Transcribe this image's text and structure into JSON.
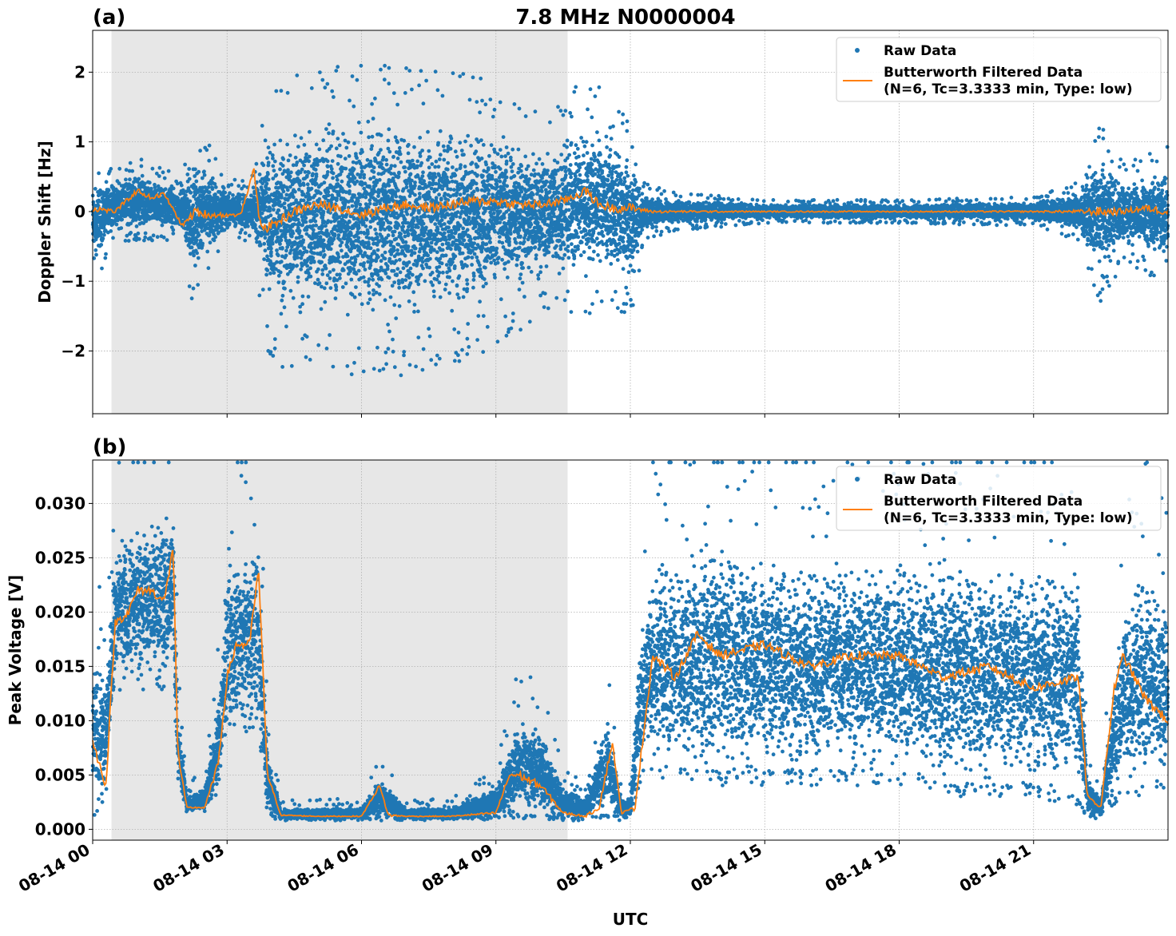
{
  "figure": {
    "title": "7.8 MHz N0000004",
    "xlabel": "UTC"
  },
  "colors": {
    "raw": "#1f77b4",
    "filtered": "#ff7f0e",
    "shade": "#e7e7e7",
    "grid": "#b0b0b0"
  },
  "chart_data": [
    {
      "type": "scatter",
      "panel_label": "(a)",
      "ylabel": "Doppler Shift [Hz]",
      "x_unit": "hours UTC on 08-14",
      "xlim": [
        0,
        24
      ],
      "ylim": [
        -2.9,
        2.6
      ],
      "yticks": [
        -2,
        -1,
        0,
        1,
        2
      ],
      "ytick_labels": [
        "−2",
        "−1",
        "0",
        "1",
        "2"
      ],
      "xticks": [
        0,
        3,
        6,
        9,
        12,
        15,
        18,
        21
      ],
      "grid": true,
      "shaded_interval": [
        0.42,
        10.6
      ],
      "legend": {
        "placement": "upper right",
        "entries": [
          "Raw Data",
          "Butterworth Filtered Data",
          "(N=6, Tc=3.3333 min, Type: low)"
        ]
      },
      "series": [
        {
          "name": "Raw Data",
          "kind": "points",
          "envelope": {
            "x": [
              0,
              0.4,
              1,
              2,
              2.25,
              2.5,
              3,
              3.5,
              3.65,
              3.85,
              4,
              5,
              6,
              7,
              8,
              9,
              10,
              10.6,
              11,
              11.5,
              12,
              12.3,
              13,
              15,
              18,
              21,
              22,
              22.5,
              23,
              24
            ],
            "upper": [
              0.5,
              0.45,
              0.6,
              0.35,
              0.9,
              0.8,
              0.35,
              0.3,
              0.6,
              1.2,
              1.3,
              1.5,
              1.5,
              1.5,
              1.5,
              1.3,
              1.0,
              1.2,
              1.4,
              1.2,
              0.9,
              0.3,
              0.2,
              0.12,
              0.12,
              0.15,
              0.3,
              0.9,
              0.5,
              0.7
            ],
            "lower": [
              -0.9,
              -0.3,
              -0.3,
              -0.3,
              -1.1,
              -0.8,
              -0.3,
              -0.3,
              -0.6,
              -1.4,
              -1.6,
              -1.7,
              -1.7,
              -1.7,
              -1.6,
              -1.4,
              -1.1,
              -1.1,
              -1.1,
              -0.9,
              -1.2,
              -0.3,
              -0.2,
              -0.12,
              -0.12,
              -0.15,
              -0.3,
              -1.0,
              -0.5,
              -0.8
            ]
          }
        },
        {
          "name": "Butterworth Filtered Data",
          "kind": "line",
          "x": [
            0,
            0.5,
            1,
            1.3,
            1.6,
            2,
            2.3,
            2.6,
            3,
            3.3,
            3.6,
            3.7,
            3.8,
            4,
            4.5,
            5,
            5.5,
            6,
            6.5,
            7,
            7.5,
            8,
            8.5,
            9,
            9.5,
            10,
            10.5,
            11,
            11.3,
            11.6,
            12,
            12.5,
            13,
            14,
            15,
            16,
            17,
            18,
            19,
            20,
            21,
            22,
            22.5,
            23,
            23.5,
            24
          ],
          "y": [
            0.05,
            0.0,
            0.3,
            0.2,
            0.25,
            -0.2,
            0.0,
            -0.05,
            -0.05,
            -0.05,
            0.6,
            0.0,
            -0.25,
            -0.2,
            0.0,
            0.1,
            0.05,
            -0.05,
            0.05,
            0.1,
            0.05,
            0.1,
            0.15,
            0.15,
            0.1,
            0.1,
            0.15,
            0.3,
            0.1,
            0.05,
            0.05,
            0.0,
            0.0,
            0.0,
            0.0,
            0.0,
            0.0,
            0.0,
            0.0,
            0.0,
            0.0,
            0.0,
            0.0,
            0.0,
            0.05,
            0.0
          ]
        }
      ]
    },
    {
      "type": "scatter",
      "panel_label": "(b)",
      "ylabel": "Peak Voltage [V]",
      "x_unit": "hours UTC on 08-14",
      "xlim": [
        0,
        24
      ],
      "ylim": [
        -0.001,
        0.034
      ],
      "yticks": [
        0,
        0.005,
        0.01,
        0.015,
        0.02,
        0.025,
        0.03
      ],
      "ytick_labels": [
        "0.000",
        "0.005",
        "0.010",
        "0.015",
        "0.020",
        "0.025",
        "0.030"
      ],
      "xticks": [
        0,
        3,
        6,
        9,
        12,
        15,
        18,
        21
      ],
      "xtick_labels": [
        "08-14 00",
        "08-14 03",
        "08-14 06",
        "08-14 09",
        "08-14 12",
        "08-14 15",
        "08-14 18",
        "08-14 21"
      ],
      "grid": true,
      "shaded_interval": [
        0.42,
        10.6
      ],
      "legend": {
        "placement": "upper right",
        "entries": [
          "Raw Data",
          "Butterworth Filtered Data",
          "(N=6, Tc=3.3333 min, Type: low)"
        ]
      },
      "series": [
        {
          "name": "Raw Data",
          "kind": "points",
          "envelope": {
            "x": [
              0,
              0.3,
              0.5,
              1,
              1.5,
              1.8,
              1.9,
              2.1,
              2.5,
              2.8,
              3,
              3.4,
              3.7,
              3.9,
              4.2,
              5,
              6,
              6.4,
              7,
              8,
              9,
              9.5,
              10,
              10.5,
              11,
              11.5,
              11.8,
              12,
              12.2,
              12.5,
              13,
              14,
              15,
              16,
              17,
              18,
              19,
              20,
              21,
              22,
              22.2,
              22.5,
              23,
              23.5,
              24
            ],
            "upper": [
              0.017,
              0.015,
              0.027,
              0.029,
              0.03,
              0.031,
              0.012,
              0.003,
              0.004,
              0.012,
              0.025,
              0.026,
              0.028,
              0.008,
              0.002,
              0.002,
              0.002,
              0.005,
              0.002,
              0.002,
              0.004,
              0.011,
              0.01,
              0.004,
              0.003,
              0.011,
              0.003,
              0.003,
              0.018,
              0.026,
              0.026,
              0.028,
              0.027,
              0.026,
              0.026,
              0.026,
              0.026,
              0.026,
              0.026,
              0.025,
              0.005,
              0.003,
              0.022,
              0.025,
              0.023
            ],
            "lower": [
              0.001,
              0.003,
              0.012,
              0.013,
              0.012,
              0.013,
              0.004,
              0.0015,
              0.0015,
              0.003,
              0.008,
              0.009,
              0.008,
              0.001,
              0.0008,
              0.0008,
              0.0008,
              0.0008,
              0.0008,
              0.0008,
              0.0009,
              0.001,
              0.0009,
              0.0008,
              0.0008,
              0.001,
              0.0008,
              0.0008,
              0.004,
              0.005,
              0.004,
              0.004,
              0.004,
              0.004,
              0.004,
              0.004,
              0.003,
              0.003,
              0.003,
              0.002,
              0.001,
              0.001,
              0.003,
              0.003,
              0.003
            ]
          }
        },
        {
          "name": "Butterworth Filtered Data",
          "kind": "line",
          "x": [
            0,
            0.3,
            0.5,
            0.8,
            1,
            1.3,
            1.6,
            1.8,
            1.9,
            2.1,
            2.5,
            2.8,
            3,
            3.2,
            3.5,
            3.7,
            3.9,
            4.2,
            5,
            6,
            6.4,
            6.6,
            7,
            8,
            9,
            9.3,
            9.5,
            10,
            10.5,
            11,
            11.3,
            11.6,
            11.8,
            12.1,
            12.5,
            13,
            13.5,
            14,
            15,
            16,
            17,
            18,
            19,
            20,
            21,
            22,
            22.2,
            22.5,
            22.8,
            23,
            23.5,
            24
          ],
          "y": [
            0.008,
            0.004,
            0.019,
            0.02,
            0.022,
            0.022,
            0.021,
            0.026,
            0.007,
            0.002,
            0.002,
            0.006,
            0.014,
            0.017,
            0.017,
            0.024,
            0.005,
            0.0013,
            0.0012,
            0.0012,
            0.004,
            0.0013,
            0.0012,
            0.0012,
            0.0015,
            0.005,
            0.005,
            0.004,
            0.0015,
            0.0012,
            0.002,
            0.008,
            0.0015,
            0.002,
            0.016,
            0.014,
            0.018,
            0.016,
            0.017,
            0.015,
            0.016,
            0.016,
            0.014,
            0.015,
            0.013,
            0.014,
            0.003,
            0.002,
            0.013,
            0.016,
            0.012,
            0.01
          ]
        }
      ]
    }
  ]
}
